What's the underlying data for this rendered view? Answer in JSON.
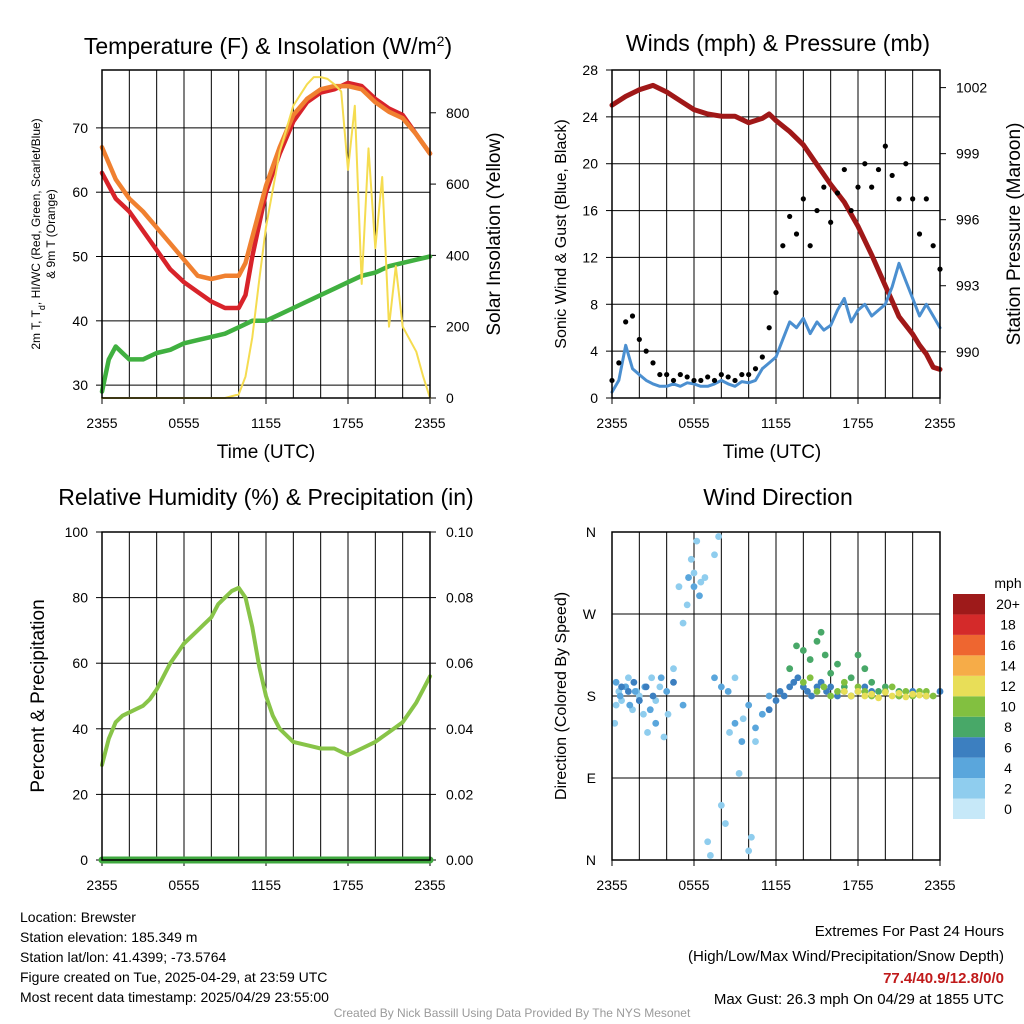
{
  "chart_data": [
    {
      "type": "line",
      "title": "Temperature (F) & Insolation (W/m",
      "title_sup": "2",
      "title_end": ")",
      "xlabel": "Time (UTC)",
      "ylabel_left_line1": "2m T, T",
      "ylabel_left_sub": "d",
      "ylabel_left_rest": ", HI/WC (Red, Green, Scarlet/Blue)",
      "ylabel_left_line2": "& 9m T (Orange)",
      "ylabel_right": "Solar Insolation (Yellow)",
      "x_ticks": [
        "2355",
        "0555",
        "1155",
        "1755",
        "2355"
      ],
      "xlim_hours": [
        0,
        24
      ],
      "y_left_ticks": [
        30,
        40,
        50,
        60,
        70
      ],
      "ylim_left": [
        28,
        79
      ],
      "y_right_ticks": [
        0,
        200,
        400,
        600,
        800
      ],
      "ylim_right": [
        0,
        920
      ],
      "grid": true,
      "series": [
        {
          "color": "#d8232a",
          "axis": "left",
          "x": [
            0,
            1,
            2,
            3,
            4,
            5,
            6,
            7,
            8,
            9,
            10,
            10.5,
            11,
            12,
            13,
            14,
            15,
            16,
            17,
            18,
            19,
            20,
            21,
            22,
            23,
            24
          ],
          "y": [
            63,
            59,
            57,
            54,
            51,
            48,
            46,
            44.5,
            43,
            42,
            42,
            44,
            50,
            60,
            66,
            71,
            74,
            75.5,
            76,
            77,
            76.5,
            74.5,
            73,
            72,
            69,
            66
          ]
        },
        {
          "color": "#f08030",
          "axis": "left",
          "x": [
            0,
            1,
            2,
            3,
            4,
            5,
            6,
            7,
            8,
            9,
            10,
            10.5,
            11,
            12,
            13,
            14,
            15,
            16,
            17,
            18,
            19,
            20,
            21,
            22,
            23,
            24
          ],
          "y": [
            67,
            62,
            59,
            57,
            54.5,
            52,
            49.5,
            47,
            46.5,
            47,
            47,
            49,
            53,
            61,
            67,
            72,
            74.5,
            76,
            76.5,
            76.5,
            76,
            74,
            72.5,
            71.5,
            69,
            66
          ]
        },
        {
          "color": "#40b040",
          "axis": "left",
          "x": [
            0,
            0.5,
            1,
            1.5,
            2,
            3,
            4,
            5,
            6,
            7,
            8,
            9,
            10,
            11,
            12,
            13,
            14,
            15,
            16,
            17,
            18,
            19,
            20,
            21,
            22,
            23,
            24
          ],
          "y": [
            29,
            34,
            36,
            35,
            34,
            34,
            35,
            35.5,
            36.5,
            37,
            37.5,
            38,
            39,
            40,
            40,
            41,
            42,
            43,
            44,
            45,
            46,
            47,
            47.5,
            48.5,
            49,
            49.5,
            50
          ]
        },
        {
          "color": "#f5dc50",
          "axis": "right",
          "x": [
            0,
            9,
            10,
            10.5,
            11,
            11.5,
            12,
            13,
            14,
            15,
            15.5,
            16,
            16.5,
            17,
            17.5,
            18,
            18.5,
            19,
            19.5,
            20,
            20.5,
            21,
            21.5,
            22,
            23,
            23.5,
            24
          ],
          "y": [
            0,
            0,
            10,
            60,
            170,
            330,
            480,
            690,
            820,
            880,
            900,
            900,
            895,
            880,
            860,
            640,
            820,
            320,
            700,
            420,
            620,
            200,
            370,
            200,
            130,
            60,
            0
          ]
        }
      ]
    },
    {
      "type": "line",
      "title": "Winds (mph) & Pressure (mb)",
      "xlabel": "Time (UTC)",
      "ylabel_left": "Sonic Wind & Gust (Blue, Black)",
      "ylabel_right": "Station Pressure (Maroon)",
      "x_ticks": [
        "2355",
        "0555",
        "1155",
        "1755",
        "2355"
      ],
      "xlim_hours": [
        0,
        24
      ],
      "y_left_ticks": [
        0,
        4,
        8,
        12,
        16,
        20,
        24,
        28
      ],
      "ylim_left": [
        0,
        28
      ],
      "y_right_ticks": [
        990,
        993,
        996,
        999,
        1002
      ],
      "ylim_right": [
        987.9,
        1002.8
      ],
      "grid": true,
      "series": [
        {
          "name": "pressure",
          "color": "#a01818",
          "axis": "right",
          "x": [
            0,
            1,
            2,
            3,
            4,
            5,
            6,
            7,
            8,
            9,
            10,
            11,
            11.5,
            12,
            13,
            14,
            15,
            16,
            17,
            18,
            19,
            20,
            20.5,
            21,
            22,
            22.5,
            23,
            23.5,
            24
          ],
          "y": [
            1001.2,
            1001.6,
            1001.9,
            1002.1,
            1001.8,
            1001.4,
            1001.0,
            1000.8,
            1000.7,
            1000.7,
            1000.4,
            1000.6,
            1000.8,
            1000.5,
            1000.0,
            999.4,
            998.5,
            997.6,
            996.8,
            995.7,
            994.4,
            993.0,
            992.3,
            991.6,
            990.8,
            990.3,
            989.9,
            989.3,
            989.2
          ]
        },
        {
          "name": "sonic wind",
          "color": "#4b8fd0",
          "axis": "left",
          "x": [
            0,
            0.5,
            1,
            1.5,
            2,
            2.5,
            3,
            3.5,
            4,
            4.5,
            5,
            5.5,
            6,
            6.5,
            7,
            7.5,
            8,
            8.5,
            9,
            9.5,
            10,
            10.5,
            11,
            11.5,
            12,
            12.5,
            13,
            13.5,
            14,
            14.5,
            15,
            15.5,
            16,
            16.5,
            17,
            17.5,
            18,
            18.5,
            19,
            19.5,
            20,
            20.5,
            21,
            21.5,
            22,
            22.5,
            23,
            23.5,
            24
          ],
          "y": [
            0.5,
            1.5,
            4.5,
            2.5,
            2,
            1.5,
            1.2,
            1,
            1,
            1.2,
            1,
            1.3,
            1.2,
            1,
            1,
            1.2,
            1.5,
            1.2,
            1,
            1.4,
            1.3,
            1.5,
            2.5,
            3,
            3.5,
            5,
            6.5,
            6,
            6.8,
            5.5,
            6.5,
            5.8,
            6.2,
            7.5,
            8.5,
            6.5,
            7.5,
            8,
            7,
            7.5,
            8,
            9.5,
            11.5,
            10,
            8.5,
            7,
            8,
            7,
            6
          ]
        },
        {
          "name": "gust",
          "color": "#000000",
          "axis": "left",
          "x": [
            0,
            0.5,
            1,
            1.5,
            2,
            2.5,
            3,
            3.5,
            4,
            4.5,
            5,
            5.5,
            6,
            6.5,
            7,
            7.5,
            8,
            8.5,
            9,
            9.5,
            10,
            10.5,
            11,
            11.5,
            12,
            12.5,
            13,
            13.5,
            14,
            14.5,
            15,
            15.5,
            16,
            16.5,
            17,
            17.5,
            18,
            18.5,
            19,
            19.5,
            20,
            20.5,
            21,
            21.5,
            22,
            22.5,
            23,
            23.5,
            24
          ],
          "y": [
            1.5,
            3,
            6.5,
            7,
            5,
            4,
            3,
            2,
            2,
            1.5,
            2,
            1.8,
            1.5,
            1.5,
            1.8,
            1.5,
            2,
            1.8,
            1.5,
            2,
            2,
            2.5,
            3.5,
            6,
            9,
            13,
            15.5,
            14,
            17,
            13,
            16,
            18,
            15,
            17.5,
            19.5,
            16,
            18,
            20,
            18,
            19.5,
            21.5,
            19,
            17,
            20,
            17,
            14,
            17,
            13,
            11
          ]
        }
      ]
    },
    {
      "type": "line",
      "title": "Relative Humidity (%) & Precipitation (in)",
      "ylabel_left": "Percent & Precipitation",
      "x_ticks": [
        "2355",
        "0555",
        "1155",
        "1755",
        "2355"
      ],
      "xlim_hours": [
        0,
        24
      ],
      "y_left_ticks": [
        0,
        20,
        40,
        60,
        80,
        100
      ],
      "ylim_left": [
        0,
        100
      ],
      "y_right_ticks": [
        "0.00",
        "0.02",
        "0.04",
        "0.06",
        "0.08",
        "0.10"
      ],
      "grid": true,
      "series": [
        {
          "color": "#88c448",
          "axis": "left",
          "x": [
            0,
            0.5,
            1,
            1.5,
            2,
            2.5,
            3,
            3.5,
            4,
            4.5,
            5,
            5.5,
            6,
            6.5,
            7,
            7.5,
            8,
            8.5,
            9,
            9.5,
            10,
            10.5,
            11,
            11.5,
            12,
            12.5,
            13,
            14,
            15,
            16,
            17,
            17.5,
            18,
            18.5,
            19,
            20,
            21,
            22,
            23,
            23.5,
            24
          ],
          "y": [
            29,
            37,
            42,
            44,
            45,
            46,
            47,
            49,
            52,
            56,
            60,
            63,
            66,
            68,
            70,
            72,
            74,
            78,
            80,
            82,
            83,
            80,
            71,
            59,
            50,
            44,
            40,
            36,
            35,
            34,
            34,
            33,
            32,
            33,
            34,
            36,
            39,
            42,
            48,
            52,
            56
          ]
        },
        {
          "color": "#3fa83f",
          "axis": "right",
          "x": [
            0,
            24
          ],
          "y": [
            0,
            0
          ]
        }
      ]
    },
    {
      "type": "scatter",
      "title": "Wind Direction",
      "ylabel_left": "Direction (Colored By Speed)",
      "x_ticks": [
        "2355",
        "0555",
        "1155",
        "1755",
        "2355"
      ],
      "xlim_hours": [
        0,
        24
      ],
      "y_ticks": [
        "N",
        "E",
        "S",
        "W",
        "N"
      ],
      "ylim_deg": [
        0,
        360
      ],
      "grid": true,
      "colorbar_title": "mph",
      "colorbar_labels": [
        "0",
        "2",
        "4",
        "6",
        "8",
        "10",
        "12",
        "14",
        "16",
        "18",
        "20+"
      ],
      "colorbar_colors": [
        "#c6e8f8",
        "#8fcdee",
        "#5aa6dc",
        "#3c7fc0",
        "#48a868",
        "#82c040",
        "#e8de58",
        "#f6ac48",
        "#ee6630",
        "#d42a2a",
        "#9e1a1a"
      ],
      "series": [
        {
          "color_index": 1,
          "x": [
            0.2,
            0.3,
            0.5,
            0.7,
            1.0,
            1.2,
            1.5,
            1.8,
            2.0,
            2.3,
            2.6,
            2.9,
            3.2,
            3.5,
            3.8,
            4.1,
            4.5,
            4.9,
            5.2,
            5.5,
            5.8,
            6.0,
            6.2,
            6.5,
            6.8,
            7.0,
            7.2,
            7.5,
            7.8,
            8.0,
            8.3,
            8.6,
            9.0,
            9.3,
            9.6,
            10.0,
            10.2,
            10.5,
            11.0
          ],
          "y": [
            150,
            170,
            185,
            175,
            190,
            200,
            165,
            185,
            180,
            160,
            140,
            200,
            175,
            190,
            135,
            160,
            210,
            300,
            260,
            280,
            330,
            315,
            350,
            305,
            310,
            20,
            5,
            335,
            355,
            60,
            40,
            140,
            200,
            95,
            155,
            10,
            25,
            130,
            160
          ]
        },
        {
          "color_index": 2,
          "x": [
            0.3,
            0.6,
            1.0,
            1.3,
            1.7,
            2.0,
            2.4,
            2.8,
            3.2,
            3.6,
            4.0,
            5.2,
            5.6,
            6.0,
            6.4,
            7.5,
            8.0,
            8.5,
            9.0,
            9.5,
            10.0,
            10.5,
            11.0,
            11.5
          ],
          "y": [
            195,
            180,
            190,
            170,
            185,
            175,
            190,
            165,
            150,
            200,
            185,
            170,
            310,
            300,
            290,
            200,
            190,
            185,
            150,
            130,
            170,
            145,
            160,
            180
          ]
        },
        {
          "color_index": 3,
          "x": [
            0.7,
            1.2,
            1.6,
            2.0,
            2.5,
            3.0,
            4.5,
            11.5,
            12.0,
            12.3,
            12.6,
            13.0,
            13.3,
            13.6,
            14.0,
            14.3,
            14.6,
            15.0,
            15.3,
            15.7,
            16.0,
            16.5,
            17.0,
            17.5,
            18.0,
            18.5,
            19.0,
            20.0,
            21.0,
            22.0,
            23.0,
            24.0
          ],
          "y": [
            190,
            185,
            195,
            175,
            190,
            180,
            195,
            165,
            175,
            185,
            180,
            190,
            195,
            200,
            190,
            185,
            180,
            190,
            195,
            185,
            190,
            180,
            185,
            180,
            185,
            190,
            185,
            185,
            180,
            185,
            180,
            185
          ]
        },
        {
          "color_index": 4,
          "x": [
            13.0,
            13.5,
            14.0,
            14.5,
            15.0,
            15.3,
            15.6,
            16.0,
            16.5,
            17.0,
            17.5,
            18.0,
            18.5,
            19.0,
            19.5,
            20.0,
            21.0
          ],
          "y": [
            210,
            235,
            230,
            220,
            240,
            250,
            225,
            205,
            215,
            190,
            200,
            225,
            210,
            195,
            185,
            190,
            185
          ]
        },
        {
          "color_index": 5,
          "x": [
            14.0,
            14.5,
            15.0,
            15.5,
            16.0,
            16.5,
            17.0,
            17.5,
            18.0,
            18.5,
            19.0,
            20.0,
            20.5,
            21.0,
            21.5,
            22.0,
            22.5,
            23.0,
            23.5
          ],
          "y": [
            195,
            200,
            185,
            190,
            180,
            185,
            195,
            180,
            190,
            185,
            180,
            185,
            190,
            180,
            185,
            180,
            185,
            185,
            180
          ]
        },
        {
          "color_index": 6,
          "x": [
            17.0,
            17.5,
            18.0,
            18.5,
            19.0,
            19.5,
            20.0,
            20.5,
            21.0,
            21.5,
            22.0,
            22.5,
            23.0
          ],
          "y": [
            185,
            180,
            185,
            180,
            182,
            178,
            184,
            180,
            183,
            179,
            182,
            181,
            180
          ]
        }
      ]
    }
  ],
  "station": {
    "location": "Location: Brewster",
    "elevation": "Station elevation: 185.349 m",
    "latlon": "Station lat/lon: 41.4399; -73.5764",
    "created": "Figure created on Tue, 2025-04-29, at 23:59 UTC",
    "recent": "Most recent data timestamp: 2025/04/29 23:55:00"
  },
  "extremes": {
    "title": "Extremes For Past 24 Hours",
    "subtitle": "(High/Low/Max Wind/Precipitation/Snow Depth)",
    "values": "77.4/40.9/12.8/0/0",
    "gust": "Max Gust: 26.3 mph On 04/29 at 1855 UTC"
  },
  "credit": "Created By Nick Bassill Using Data Provided By The NYS Mesonet"
}
